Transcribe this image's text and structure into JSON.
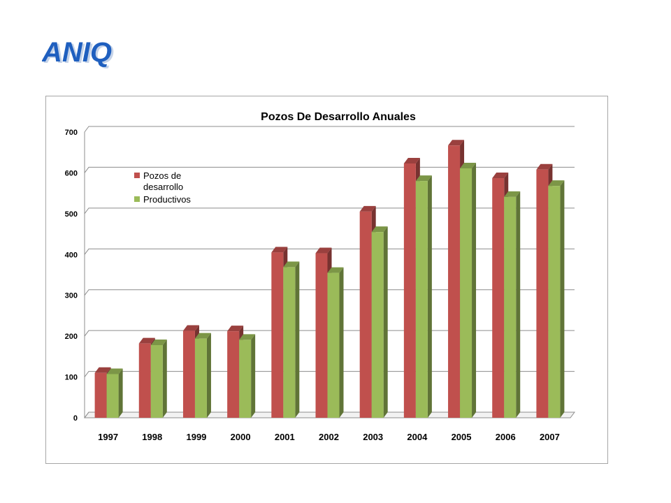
{
  "logo": {
    "text": "ANIQ",
    "colors": {
      "primary": "#1f5fbf",
      "shadow": "#9fb7d9"
    }
  },
  "chart_data": {
    "type": "bar",
    "title": "Pozos De Desarrollo   Anuales",
    "xlabel": "",
    "ylabel": "",
    "categories": [
      "1997",
      "1998",
      "1999",
      "2000",
      "2001",
      "2002",
      "2003",
      "2004",
      "2005",
      "2006",
      "2007"
    ],
    "series": [
      {
        "name": "Pozos de desarrollo",
        "legend_lines": [
          "Pozos de",
          "desarrollo"
        ],
        "color": "#c0504d",
        "values": [
          110,
          182,
          213,
          212,
          405,
          403,
          505,
          623,
          667,
          587,
          608
        ]
      },
      {
        "name": "Productivos",
        "legend_lines": [
          "Productivos"
        ],
        "color": "#9bbb59",
        "values": [
          107,
          178,
          194,
          191,
          369,
          355,
          455,
          580,
          611,
          541,
          568
        ]
      }
    ],
    "ylim": [
      0,
      700
    ],
    "yticks": [
      0,
      100,
      200,
      300,
      400,
      500,
      600,
      700
    ],
    "grid": true,
    "legend_position": "upper-left"
  }
}
